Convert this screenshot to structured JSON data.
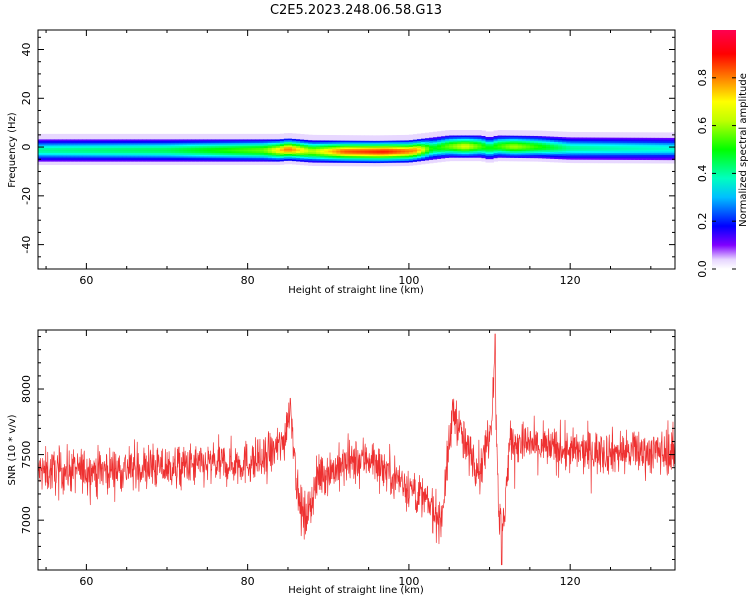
{
  "figure": {
    "title": "C2E5.2023.248.06.58.G13"
  },
  "chart_data": [
    {
      "type": "heatmap",
      "title": "C2E5.2023.248.06.58.G13",
      "xlabel": "Height of straight line (km)",
      "ylabel": "Frequency (Hz)",
      "xlim": [
        54,
        133
      ],
      "ylim": [
        -50,
        48
      ],
      "x_ticks": [
        60,
        80,
        100,
        120
      ],
      "y_ticks": [
        40,
        20,
        0,
        -20,
        -40
      ],
      "colorbar": {
        "label": "Normalized spectral amplitude",
        "range": [
          0.0,
          1.0
        ],
        "ticks": [
          0.0,
          0.2,
          0.4,
          0.6,
          0.8
        ],
        "colormap": "gist_rainbow"
      },
      "band_center_hz": [
        {
          "x": 54,
          "f": -1.2
        },
        {
          "x": 84,
          "f": -1.2
        },
        {
          "x": 85,
          "f": -0.8
        },
        {
          "x": 88,
          "f": -1.6
        },
        {
          "x": 96,
          "f": -1.8
        },
        {
          "x": 100,
          "f": -1.6
        },
        {
          "x": 103,
          "f": -0.4
        },
        {
          "x": 105,
          "f": 0.4
        },
        {
          "x": 109,
          "f": 0.4
        },
        {
          "x": 110,
          "f": -0.4
        },
        {
          "x": 111,
          "f": 0.4
        },
        {
          "x": 116,
          "f": 0.2
        },
        {
          "x": 120,
          "f": -0.4
        },
        {
          "x": 133,
          "f": -0.6
        }
      ],
      "band_peak_amplitude": [
        {
          "x": 54,
          "a": 0.45
        },
        {
          "x": 70,
          "a": 0.5
        },
        {
          "x": 82,
          "a": 0.65
        },
        {
          "x": 85,
          "a": 0.88
        },
        {
          "x": 88,
          "a": 0.7
        },
        {
          "x": 92,
          "a": 0.9
        },
        {
          "x": 97,
          "a": 0.95
        },
        {
          "x": 101,
          "a": 0.85
        },
        {
          "x": 103,
          "a": 0.55
        },
        {
          "x": 107,
          "a": 0.75
        },
        {
          "x": 110,
          "a": 0.55
        },
        {
          "x": 113,
          "a": 0.7
        },
        {
          "x": 120,
          "a": 0.45
        },
        {
          "x": 133,
          "a": 0.4
        }
      ],
      "band_halfwidth_hz": 4.5
    },
    {
      "type": "line",
      "xlabel": "Height of straight line (km)",
      "ylabel": "SNR (10 * v/v)",
      "xlim": [
        54,
        133
      ],
      "ylim": [
        6620,
        8450
      ],
      "x_ticks": [
        60,
        80,
        100,
        120
      ],
      "y_ticks": [
        7000,
        7500,
        8000
      ],
      "color": "#ee3030",
      "trend": [
        {
          "x": 54,
          "snr": 7370
        },
        {
          "x": 70,
          "snr": 7400
        },
        {
          "x": 82,
          "snr": 7450
        },
        {
          "x": 84.5,
          "snr": 7600
        },
        {
          "x": 85.3,
          "snr": 7900
        },
        {
          "x": 86.2,
          "snr": 7200
        },
        {
          "x": 87,
          "snr": 7000
        },
        {
          "x": 89,
          "snr": 7350
        },
        {
          "x": 95,
          "snr": 7480
        },
        {
          "x": 99,
          "snr": 7300
        },
        {
          "x": 102,
          "snr": 7150
        },
        {
          "x": 104,
          "snr": 7000
        },
        {
          "x": 105.5,
          "snr": 7850
        },
        {
          "x": 107,
          "snr": 7550
        },
        {
          "x": 109,
          "snr": 7400
        },
        {
          "x": 110.2,
          "snr": 7750
        },
        {
          "x": 110.6,
          "snr": 8250
        },
        {
          "x": 111.2,
          "snr": 7000
        },
        {
          "x": 111.7,
          "snr": 6950
        },
        {
          "x": 112.5,
          "snr": 7600
        },
        {
          "x": 120,
          "snr": 7520
        },
        {
          "x": 133,
          "snr": 7520
        }
      ],
      "noise_amplitude": 120,
      "extremes": {
        "max": 8420,
        "min": 6660
      }
    }
  ]
}
